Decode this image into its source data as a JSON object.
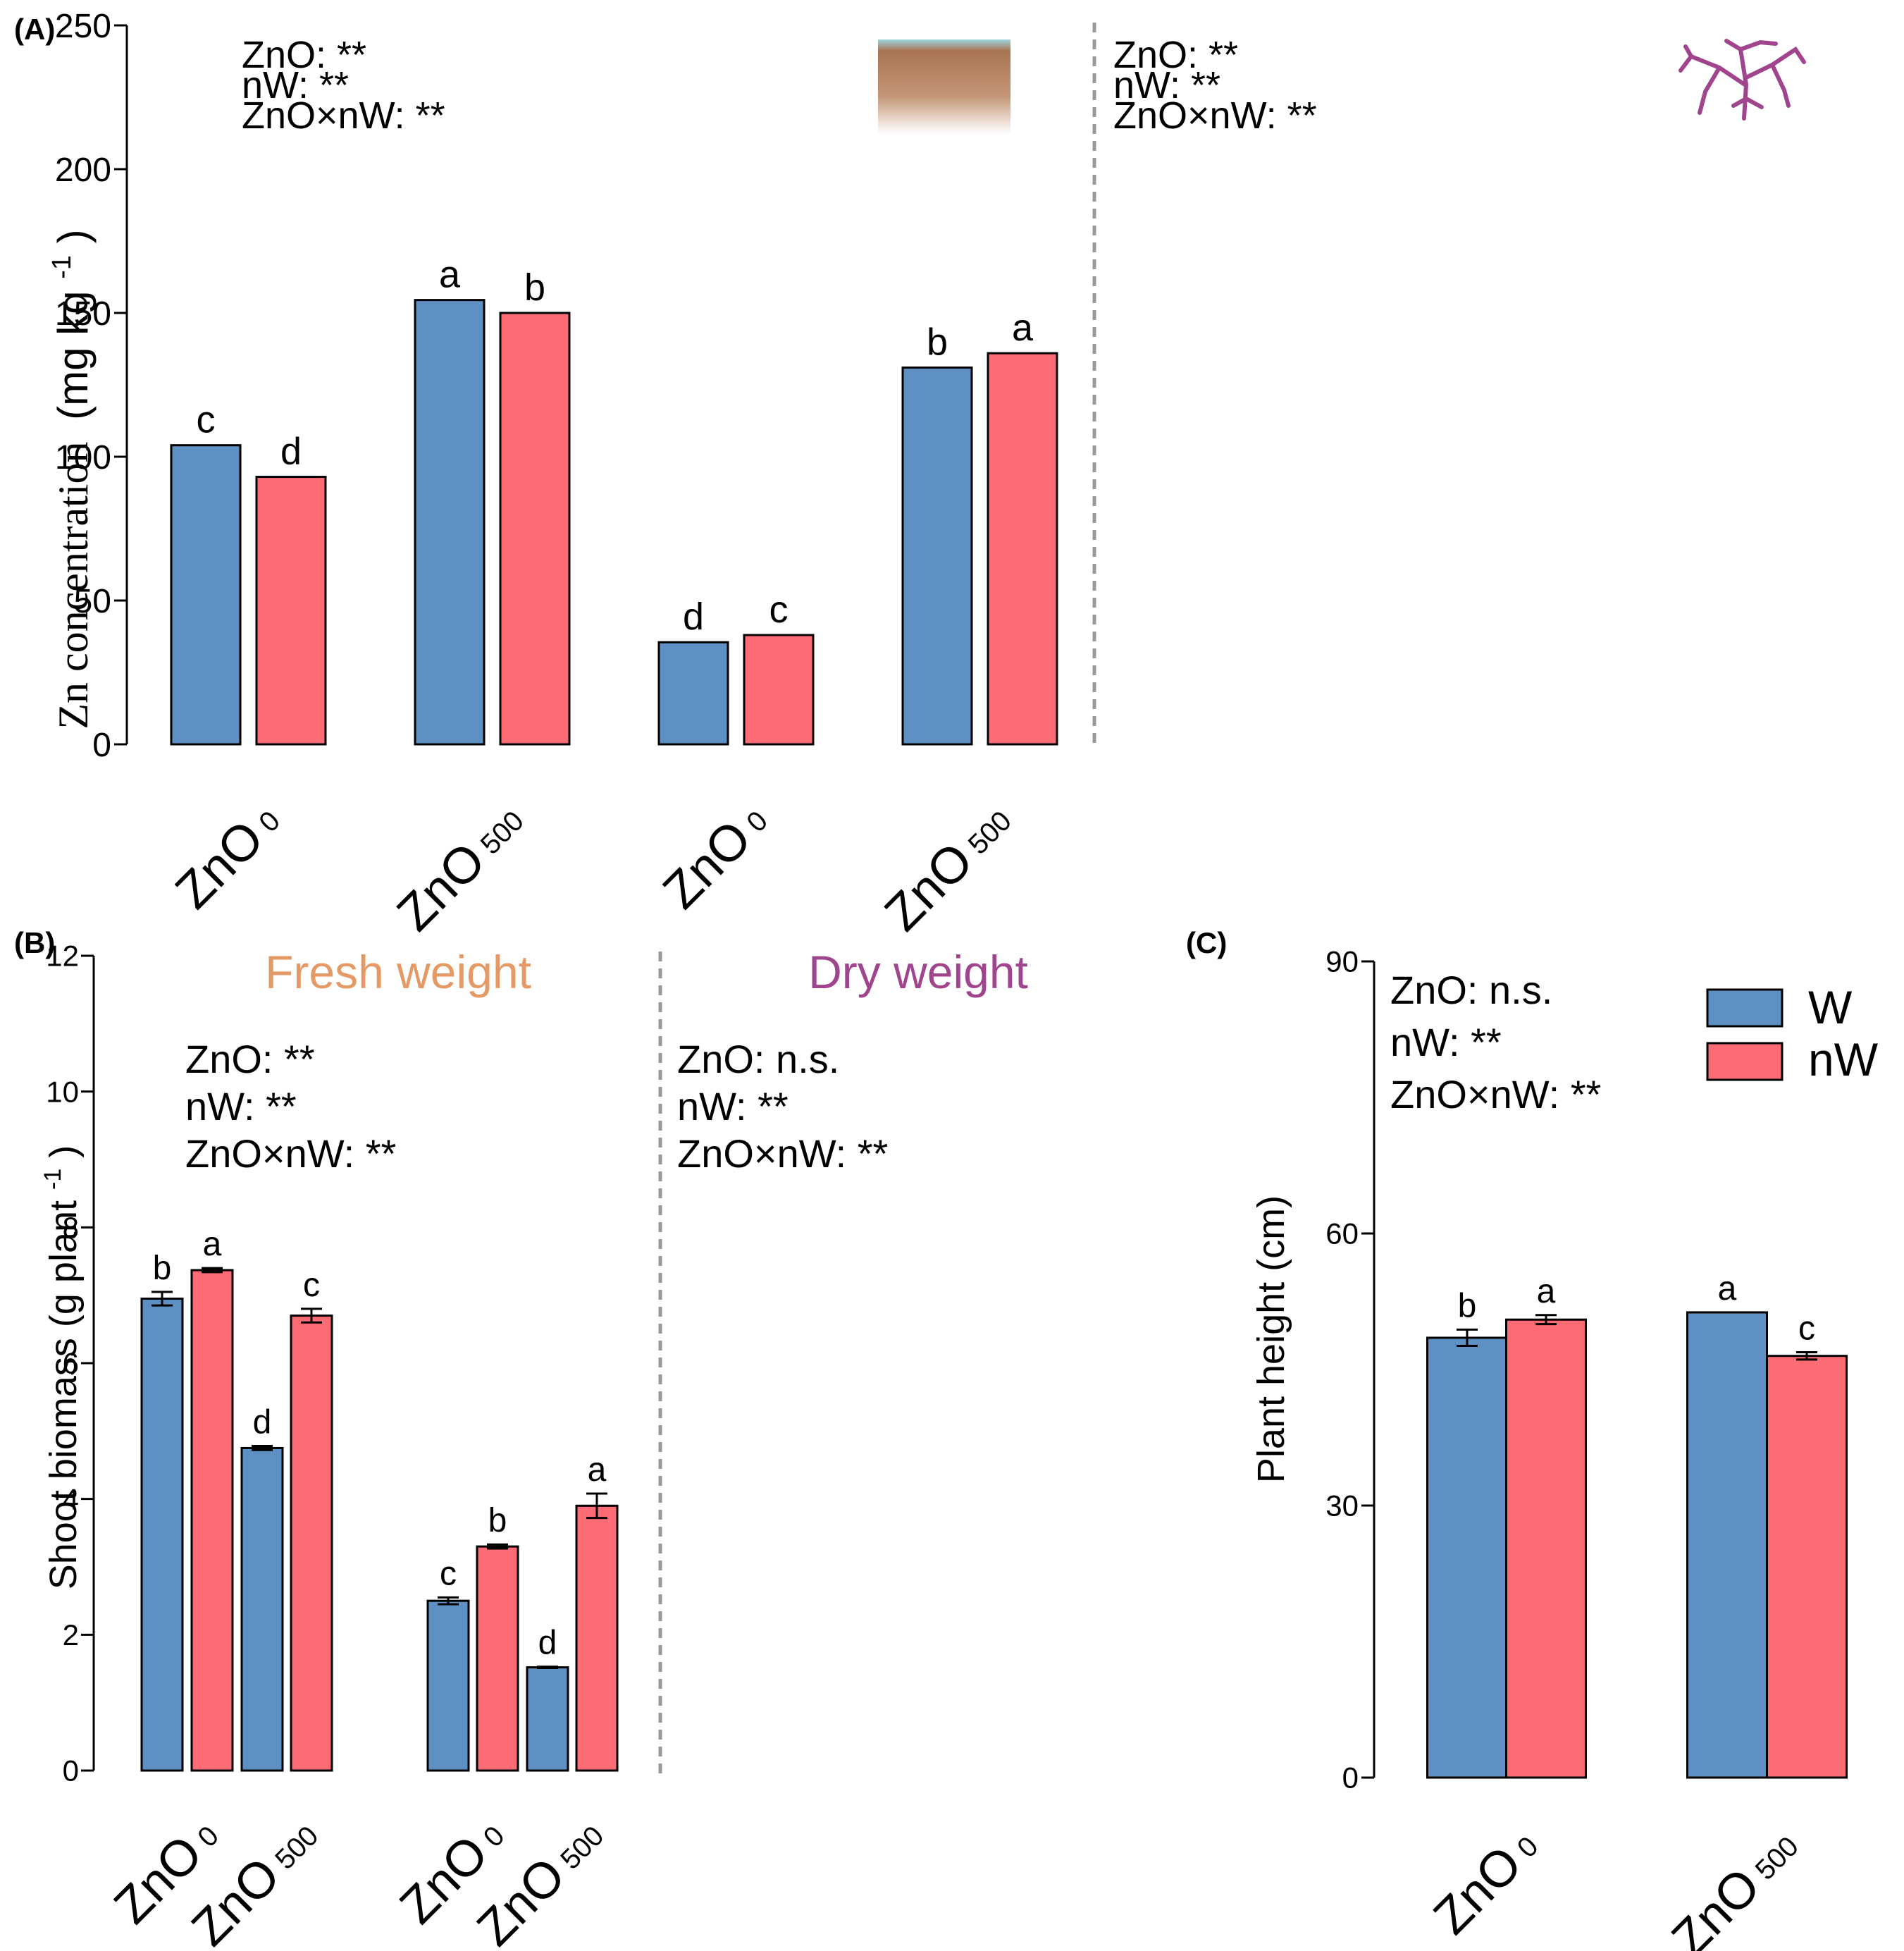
{
  "colors": {
    "W": "#5f90c3",
    "nW": "#fd6b74",
    "fresh": "#e59a66",
    "dry": "#a0448d",
    "root": "#a0448d"
  },
  "legend": {
    "W": "W",
    "nW": "nW"
  },
  "chart_data": [
    {
      "type": "bar",
      "panel_label": "(A)",
      "title": "",
      "ylabel_main": "Zn concentration",
      "ylabel_unit": "(mg kg",
      "ylabel_sup": "-1",
      "ylabel_close": ")",
      "ylim": [
        0,
        250
      ],
      "yticks": [
        "0",
        "50",
        "100",
        "150",
        "200",
        "250"
      ],
      "groups": [
        {
          "icon": "soil-icon",
          "stats": [
            "ZnO: **",
            "nW: **",
            "ZnO×nW: **"
          ],
          "categories": [
            {
              "base": "ZnO",
              "sub": "0"
            },
            {
              "base": "ZnO",
              "sub": "500"
            }
          ],
          "series": [
            {
              "name": "W",
              "values": [
                104,
                154.5
              ],
              "letters": [
                "c",
                "a"
              ]
            },
            {
              "name": "nW",
              "values": [
                93,
                150
              ],
              "letters": [
                "d",
                "b"
              ]
            }
          ]
        },
        {
          "icon": "root-icon",
          "stats": [
            "ZnO: **",
            "nW: **",
            "ZnO×nW: **"
          ],
          "categories": [
            {
              "base": "ZnO",
              "sub": "0"
            },
            {
              "base": "ZnO",
              "sub": "500"
            }
          ],
          "series": [
            {
              "name": "W",
              "values": [
                35.5,
                131
              ],
              "letters": [
                "d",
                "b"
              ]
            },
            {
              "name": "nW",
              "values": [
                38,
                136
              ],
              "letters": [
                "c",
                "a"
              ]
            }
          ]
        }
      ]
    },
    {
      "type": "bar",
      "panel_label": "(B)",
      "ylabel_main": "Shoot biomass (g plant",
      "ylabel_sup": "-1",
      "ylabel_close": ")",
      "ylim": [
        0,
        12
      ],
      "yticks": [
        "0",
        "2",
        "4",
        "6",
        "8",
        "10",
        "12"
      ],
      "groups": [
        {
          "title": "Fresh weight",
          "stats": [
            "ZnO: **",
            "nW: **",
            "ZnO×nW: **"
          ],
          "categories": [
            {
              "base": "ZnO",
              "sub": "0"
            },
            {
              "base": "ZnO",
              "sub": "500"
            }
          ],
          "series": [
            {
              "name": "W",
              "values": [
                6.95,
                4.75
              ],
              "errors": [
                0.1,
                0.03
              ],
              "letters": [
                "b",
                "d"
              ]
            },
            {
              "name": "nW",
              "values": [
                7.37,
                6.7
              ],
              "errors": [
                0.03,
                0.1
              ],
              "letters": [
                "a",
                "c"
              ]
            }
          ]
        },
        {
          "title": "Dry weight",
          "stats": [
            "ZnO: n.s.",
            "nW: **",
            "ZnO×nW: **"
          ],
          "categories": [
            {
              "base": "ZnO",
              "sub": "0"
            },
            {
              "base": "ZnO",
              "sub": "500"
            }
          ],
          "series": [
            {
              "name": "W",
              "values": [
                2.5,
                1.52
              ],
              "errors": [
                0.05,
                0.01
              ],
              "letters": [
                "c",
                "d"
              ]
            },
            {
              "name": "nW",
              "values": [
                3.3,
                3.9
              ],
              "errors": [
                0.03,
                0.18
              ],
              "letters": [
                "b",
                "a"
              ]
            }
          ]
        }
      ]
    },
    {
      "type": "bar",
      "panel_label": "(C)",
      "ylabel_main": "Plant height (cm)",
      "ylim": [
        0,
        90
      ],
      "yticks": [
        "0",
        "30",
        "60",
        "90"
      ],
      "groups": [
        {
          "stats": [
            "ZnO: n.s.",
            "nW: **",
            "ZnO×nW: **"
          ],
          "categories": [
            {
              "base": "ZnO",
              "sub": "0"
            },
            {
              "base": "ZnO",
              "sub": "500"
            }
          ],
          "series": [
            {
              "name": "W",
              "values": [
                48.5,
                51.3
              ],
              "errors": [
                0.9,
                0
              ],
              "letters": [
                "b",
                "a"
              ]
            },
            {
              "name": "nW",
              "values": [
                50.5,
                46.5
              ],
              "errors": [
                0.5,
                0.4
              ],
              "letters": [
                "a",
                "c"
              ]
            }
          ]
        }
      ]
    }
  ]
}
